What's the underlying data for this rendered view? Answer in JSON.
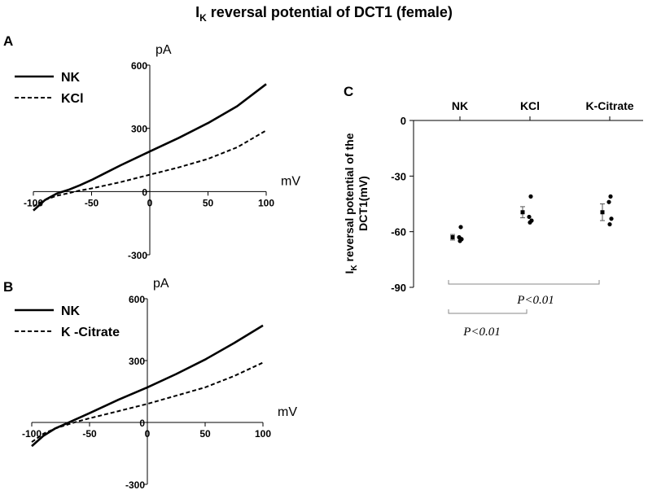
{
  "figure": {
    "title_main": "I",
    "title_sub": "K",
    "title_rest": " reversal potential of DCT1 (female)"
  },
  "chart_data": [
    {
      "panel": "A",
      "type": "line",
      "xlabel": "mV",
      "ylabel": "pA",
      "xlim": [
        -100,
        100
      ],
      "ylim": [
        -300,
        600
      ],
      "xticks": [
        -100,
        -50,
        0,
        50,
        100
      ],
      "yticks": [
        -300,
        0,
        300,
        600
      ],
      "legend_position": "top-left",
      "series": [
        {
          "name": "NK",
          "style": "solid",
          "x": [
            -100,
            -90,
            -80,
            -70,
            -60,
            -50,
            -25,
            0,
            25,
            50,
            75,
            100
          ],
          "y": [
            -90,
            -40,
            -10,
            8,
            30,
            55,
            125,
            190,
            255,
            325,
            405,
            510
          ]
        },
        {
          "name": "KCl",
          "style": "dashed",
          "x": [
            -100,
            -90,
            -80,
            -70,
            -60,
            -50,
            -25,
            0,
            25,
            50,
            75,
            100
          ],
          "y": [
            -70,
            -40,
            -20,
            -8,
            5,
            15,
            45,
            80,
            115,
            155,
            210,
            290
          ]
        }
      ]
    },
    {
      "panel": "B",
      "type": "line",
      "xlabel": "mV",
      "ylabel": "pA",
      "xlim": [
        -100,
        100
      ],
      "ylim": [
        -300,
        600
      ],
      "xticks": [
        -100,
        -50,
        0,
        50,
        100
      ],
      "yticks": [
        -300,
        0,
        300,
        600
      ],
      "legend_position": "top-left",
      "series": [
        {
          "name": "NK",
          "style": "solid",
          "x": [
            -100,
            -90,
            -80,
            -70,
            -60,
            -50,
            -25,
            0,
            25,
            50,
            75,
            100
          ],
          "y": [
            -115,
            -65,
            -30,
            -5,
            20,
            45,
            110,
            170,
            235,
            305,
            385,
            470
          ]
        },
        {
          "name": "K -Citrate",
          "style": "dashed",
          "x": [
            -100,
            -90,
            -80,
            -70,
            -60,
            -50,
            -25,
            0,
            25,
            50,
            75,
            100
          ],
          "y": [
            -95,
            -55,
            -30,
            -12,
            5,
            20,
            55,
            90,
            130,
            170,
            225,
            290
          ]
        }
      ]
    },
    {
      "panel": "C",
      "type": "scatter",
      "ylabel_main": "I",
      "ylabel_sub": "K",
      "ylabel_rest": " reversal potential of the",
      "ylabel_line2": "DCT1(mV)",
      "ylim": [
        -90,
        0
      ],
      "yticks": [
        0,
        -30,
        -60,
        -90
      ],
      "categories": [
        "NK",
        "KCl",
        "K-Citrate"
      ],
      "means": [
        -63,
        -49.5,
        -49.5
      ],
      "errors": [
        1.5,
        3,
        4.5
      ],
      "points": [
        [
          -57.5,
          -63,
          -64,
          -65
        ],
        [
          -41,
          -52,
          -54,
          -55
        ],
        [
          -41,
          -44,
          -53,
          -56
        ]
      ],
      "annotations": [
        {
          "label": "P<0.01",
          "from": "NK",
          "to": "K-Citrate"
        },
        {
          "label": "P<0.01",
          "from": "NK",
          "to": "KCl"
        }
      ]
    }
  ]
}
